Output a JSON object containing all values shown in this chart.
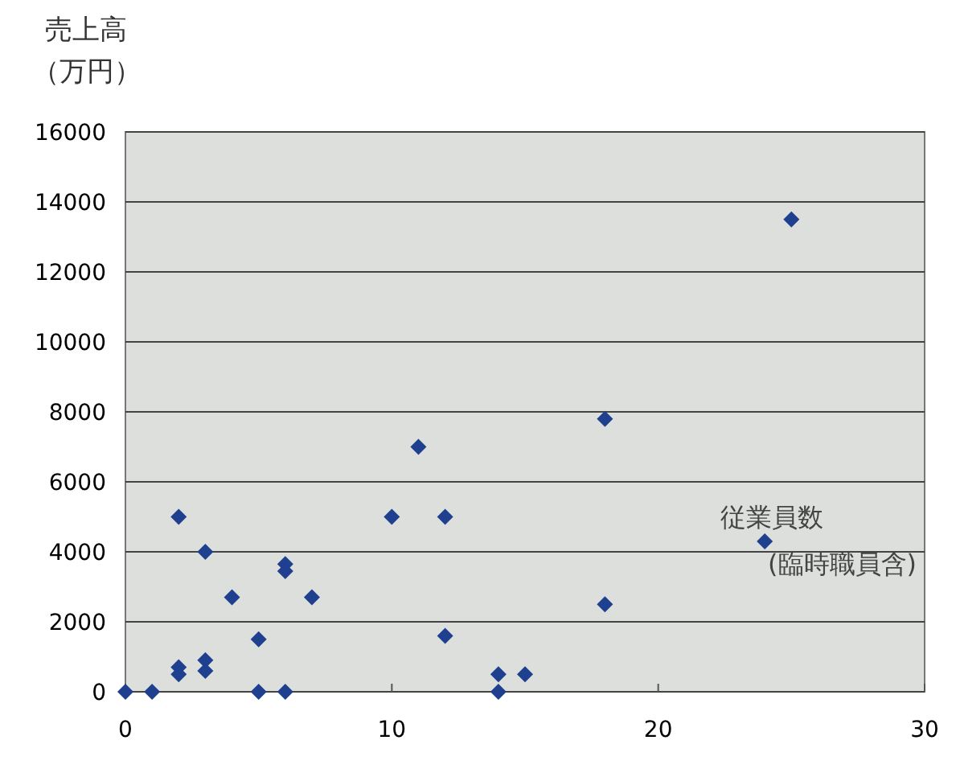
{
  "chart_data": {
    "type": "scatter",
    "xlabel": "従業員数(臨時職員含)",
    "ylabel": "売上高（万円）",
    "series": [
      {
        "color": "#1f3f8f",
        "x": [
          0,
          1,
          2,
          2,
          2,
          3,
          3,
          3,
          4,
          5,
          5,
          6,
          6,
          6,
          7,
          10,
          11,
          12,
          12,
          14,
          14,
          15,
          18,
          18,
          24,
          25
        ],
        "values": [
          0,
          0,
          5000,
          700,
          500,
          4000,
          900,
          600,
          2700,
          1500,
          0,
          3650,
          3450,
          0,
          2700,
          5000,
          7000,
          5000,
          1600,
          500,
          0,
          500,
          7800,
          2500,
          4300,
          13500
        ]
      }
    ],
    "xlim": [
      0,
      30
    ],
    "xticks": [
      0,
      10,
      20,
      30
    ],
    "ylim": [
      0,
      16000
    ],
    "yticks": [
      0,
      2000,
      4000,
      6000,
      8000,
      10000,
      12000,
      14000,
      16000
    ],
    "grid": "y",
    "marker": "diamond"
  }
}
